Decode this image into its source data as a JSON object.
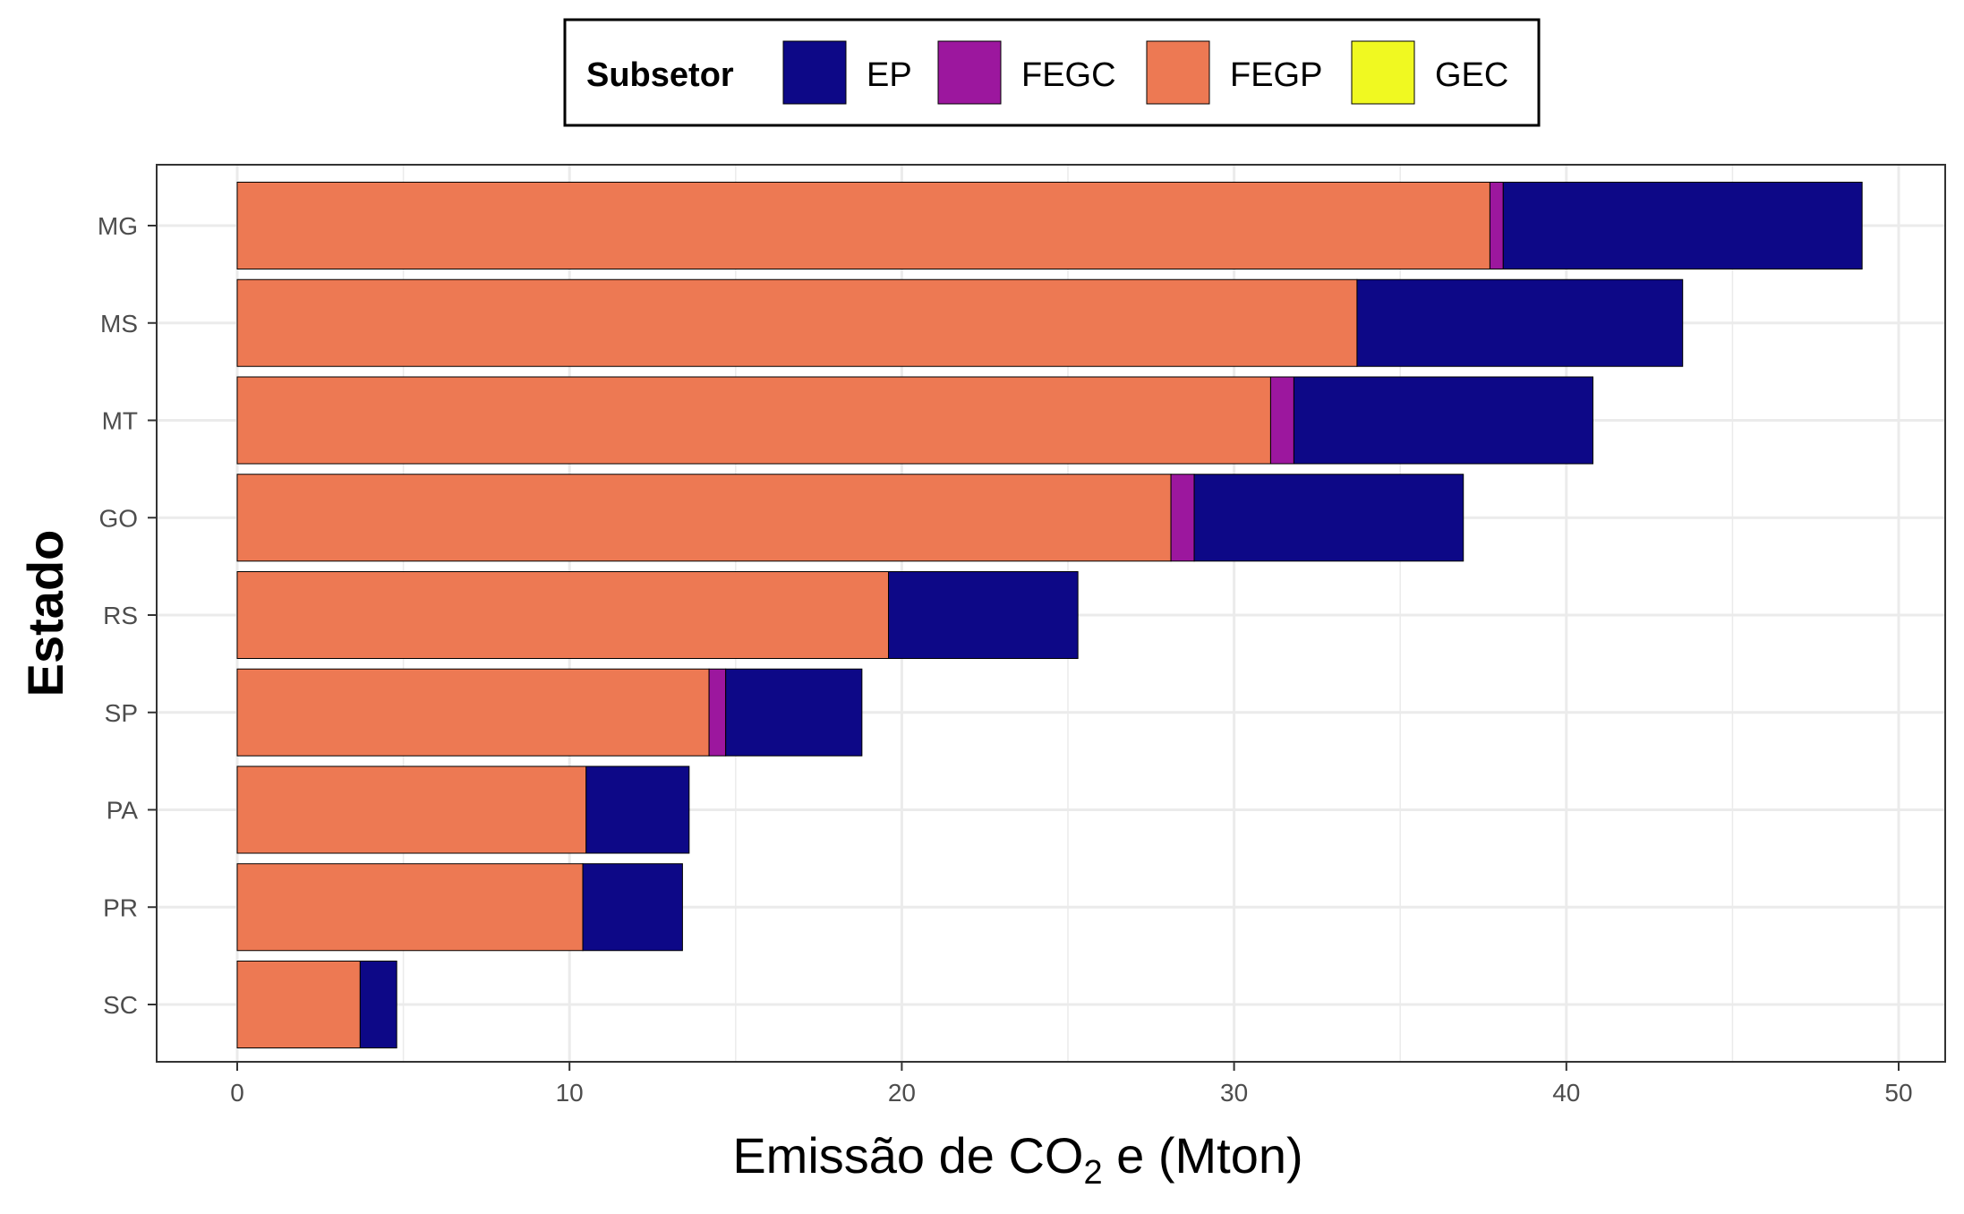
{
  "chart_data": {
    "type": "bar",
    "orientation": "horizontal",
    "stacked": true,
    "xlabel_main": "Emissão de CO",
    "xlabel_sub": "2",
    "xlabel_tail": " e (Mton)",
    "ylabel": "Estado",
    "xlim": [
      0,
      50
    ],
    "xticks": [
      "0",
      "10",
      "20",
      "30",
      "40",
      "50"
    ],
    "grid": true,
    "legend": {
      "title": "Subsetor",
      "position": "top",
      "items": [
        {
          "name": "EP",
          "color": "#0D0887"
        },
        {
          "name": "FEGC",
          "color": "#9C179E"
        },
        {
          "name": "FEGP",
          "color": "#ED7953"
        },
        {
          "name": "GEC",
          "color": "#F0F921"
        }
      ]
    },
    "categories": [
      "MG",
      "MS",
      "MT",
      "GO",
      "RS",
      "SP",
      "PA",
      "PR",
      "SC"
    ],
    "stack_order": [
      "FEGP",
      "GEC",
      "FEGC",
      "EP"
    ],
    "series": [
      {
        "name": "FEGP",
        "color": "#ED7953",
        "values": [
          37.7,
          33.7,
          31.1,
          28.1,
          19.6,
          14.2,
          10.5,
          10.4,
          3.7
        ]
      },
      {
        "name": "GEC",
        "color": "#F0F921",
        "values": [
          0,
          0,
          0,
          0,
          0,
          0,
          0,
          0,
          0
        ]
      },
      {
        "name": "FEGC",
        "color": "#9C179E",
        "values": [
          0.4,
          0,
          0.7,
          0.7,
          0,
          0.5,
          0,
          0,
          0
        ]
      },
      {
        "name": "EP",
        "color": "#0D0887",
        "values": [
          10.8,
          9.8,
          9.0,
          8.1,
          5.7,
          4.1,
          3.1,
          3.0,
          1.1
        ]
      }
    ]
  }
}
